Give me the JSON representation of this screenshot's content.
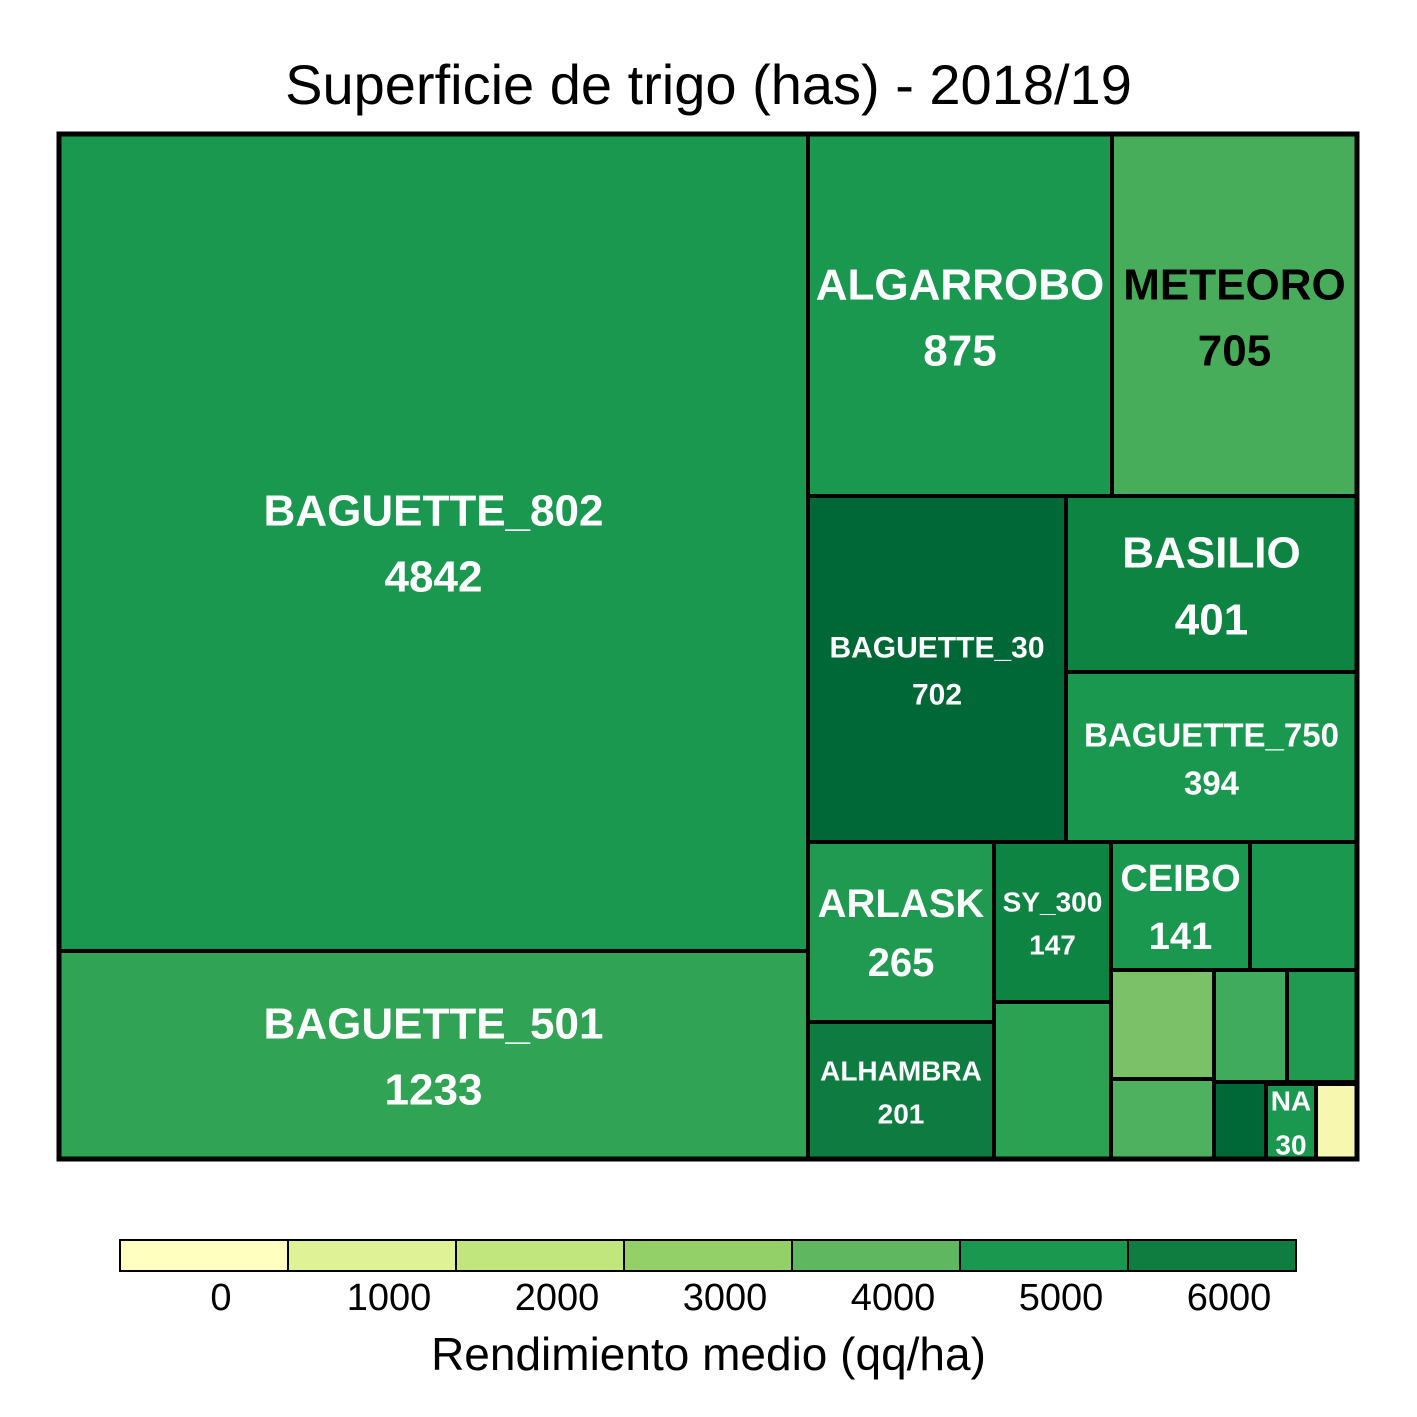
{
  "chart_data": {
    "type": "treemap",
    "title": "Superficie de trigo (has) - 2018/19",
    "size_variable": "Superficie (has)",
    "color_variable": "Rendimiento medio (qq/ha)",
    "items": [
      {
        "name": "BAGUETTE_802",
        "value": 4842,
        "color": "#1a9850",
        "text_color": "#ffffff"
      },
      {
        "name": "BAGUETTE_501",
        "value": 1233,
        "color": "#31a354",
        "text_color": "#ffffff"
      },
      {
        "name": "ALGARROBO",
        "value": 875,
        "color": "#1a9850",
        "text_color": "#ffffff"
      },
      {
        "name": "METEORO",
        "value": 705,
        "color": "#47ad5b",
        "text_color": "#000000"
      },
      {
        "name": "BAGUETTE_30",
        "value": 702,
        "color": "#006837",
        "text_color": "#ffffff"
      },
      {
        "name": "BASILIO",
        "value": 401,
        "color": "#0e8443",
        "text_color": "#ffffff"
      },
      {
        "name": "BAGUETTE_750",
        "value": 394,
        "color": "#1a9850",
        "text_color": "#ffffff"
      },
      {
        "name": "ARLASK",
        "value": 265,
        "color": "#1f9a50",
        "text_color": "#ffffff"
      },
      {
        "name": "ALHAMBRA",
        "value": 201,
        "color": "#0e7c40",
        "text_color": "#ffffff"
      },
      {
        "name": "SY_300",
        "value": 147,
        "color": "#0e8443",
        "text_color": "#ffffff"
      },
      {
        "name": "CEIBO",
        "value": 141,
        "color": "#1a9850",
        "text_color": "#ffffff"
      },
      {
        "name": "NA",
        "value": 30,
        "color": "#1a9850",
        "text_color": "#ffffff"
      }
    ],
    "unlabeled_items": [
      {
        "color": "#1a9850"
      },
      {
        "color": "#2ba152"
      },
      {
        "color": "#7bc167"
      },
      {
        "color": "#41ab5d"
      },
      {
        "color": "#1f9a50"
      },
      {
        "color": "#4db160"
      },
      {
        "color": "#006837"
      },
      {
        "color": "#f7f7b0"
      }
    ],
    "legend": {
      "title": "Rendimiento medio (qq/ha)",
      "ticks": [
        "0",
        "1000",
        "2000",
        "3000",
        "4000",
        "5000",
        "6000"
      ],
      "colors": [
        "#ffffbf",
        "#dff296",
        "#c2e67e",
        "#93d068",
        "#5fb760",
        "#1a9850",
        "#0f7c40"
      ]
    }
  }
}
